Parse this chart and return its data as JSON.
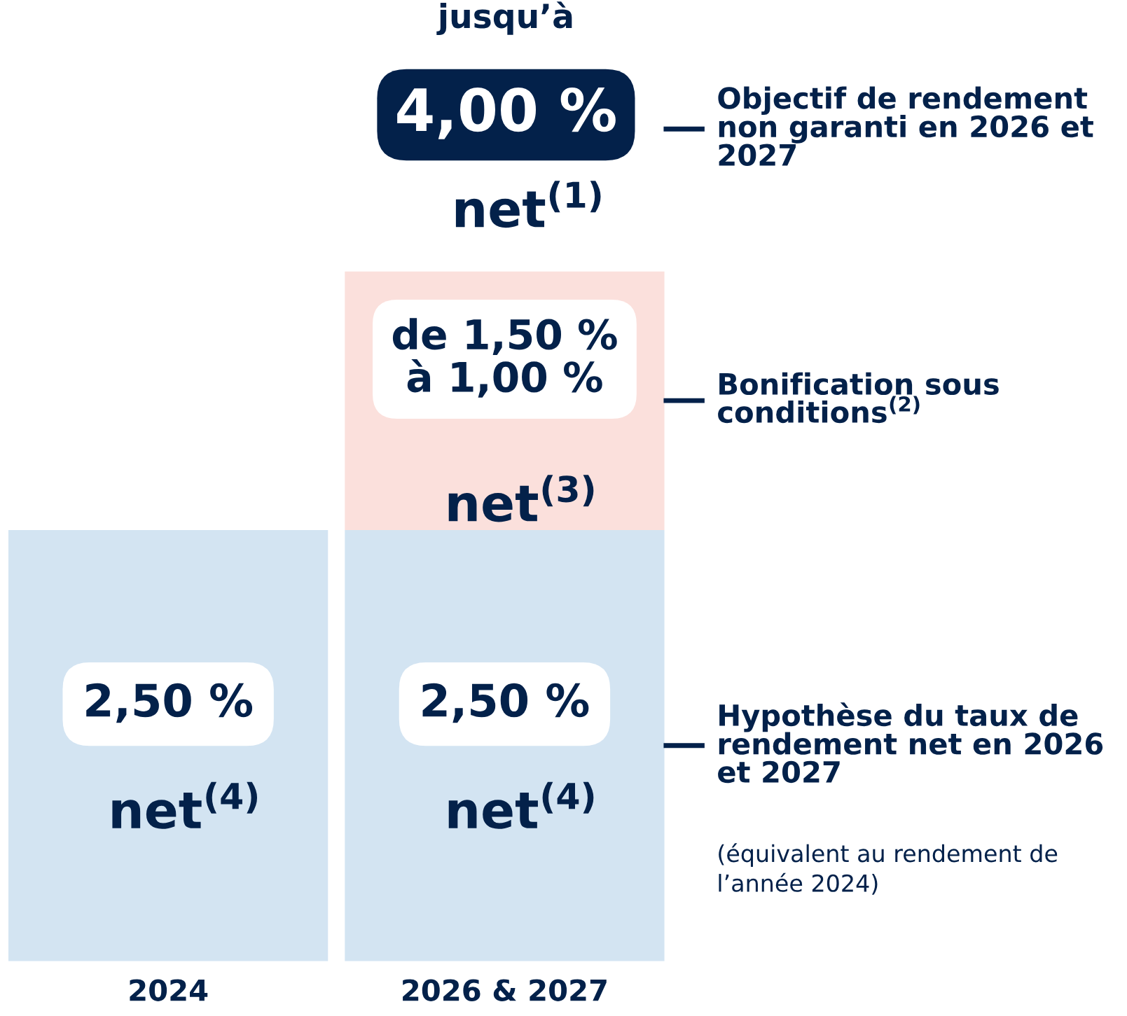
{
  "chart_data": {
    "type": "bar",
    "stacked": true,
    "tick_labels": "x",
    "categories": [
      "2024",
      "2026 & 2027"
    ],
    "series": [
      {
        "name": "Hypothèse du taux de rendement net en 2026 et 2027",
        "color": "#d3e4f2",
        "values": [
          2.5,
          2.5
        ],
        "value_labels": [
          "2,50 %",
          "2,50 %"
        ]
      },
      {
        "name": "Bonification sous conditions$^{(2)}$",
        "color": "#fbe0dc",
        "values": [
          null,
          1.5
        ],
        "value_labels": [
          null,
          "de 1,50 %\nà 1,00 %"
        ]
      }
    ],
    "annotations": [
      "jusqu’à",
      "4,00 %",
      "net$^{(1)}$",
      "Objectif de rendement non garanti en 2026 et 2027",
      "(équivalent au rendement de l’année 2024)",
      "net$^{(4)}$",
      "net$^{(4)}$",
      "net$^{(3)}$"
    ]
  }
}
